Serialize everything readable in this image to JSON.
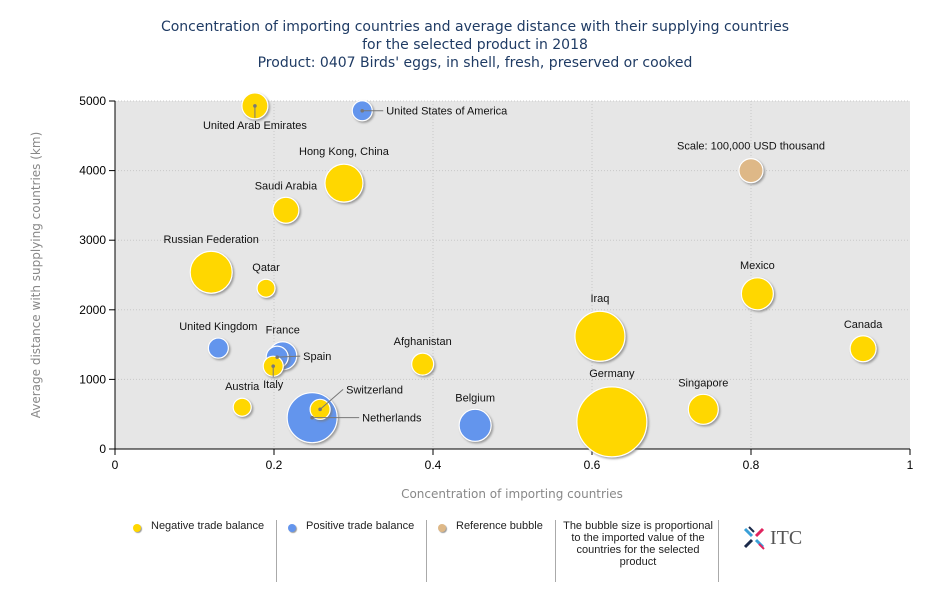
{
  "title": {
    "line1": "Concentration of importing countries and average distance with their supplying countries",
    "line2": "for the selected product in 2018",
    "line3": "Product: 0407 Birds' eggs, in shell, fresh, preserved or cooked"
  },
  "colors": {
    "negative": "#ffd700",
    "positive": "#6495ed",
    "reference": "#deb887",
    "plot_bg": "#e6e6e6"
  },
  "chart_data": {
    "type": "scatter",
    "subtype": "bubble",
    "xlabel": "Concentration of importing countries",
    "ylabel": "Average distance with supplying countries (km)",
    "xlim": [
      0,
      1
    ],
    "ylim": [
      0,
      5000
    ],
    "xticks": [
      "0",
      "0.2",
      "0.4",
      "0.6",
      "0.8",
      "1"
    ],
    "xtick_values": [
      0,
      0.2,
      0.4,
      0.6,
      0.8,
      1
    ],
    "yticks": [
      "0",
      "1000",
      "2000",
      "3000",
      "4000",
      "5000"
    ],
    "ytick_values": [
      0,
      1000,
      2000,
      3000,
      4000,
      5000
    ],
    "grid": true,
    "bubble_size_note": "relative import value (reference bubble = 100,000 USD thousand)",
    "points": [
      {
        "name": "United Arab Emirates",
        "x": 0.176,
        "y": 4930,
        "size": 117000,
        "balance": "negative"
      },
      {
        "name": "United States of America",
        "x": 0.311,
        "y": 4860,
        "size": 69000,
        "balance": "positive"
      },
      {
        "name": "Hong Kong, China",
        "x": 0.288,
        "y": 3820,
        "size": 250000,
        "balance": "negative"
      },
      {
        "name": "Saudi Arabia",
        "x": 0.215,
        "y": 3430,
        "size": 117000,
        "balance": "negative"
      },
      {
        "name": "Russian Federation",
        "x": 0.121,
        "y": 2540,
        "size": 306000,
        "balance": "negative"
      },
      {
        "name": "Qatar",
        "x": 0.19,
        "y": 2310,
        "size": 56000,
        "balance": "negative"
      },
      {
        "name": "Mexico",
        "x": 0.808,
        "y": 2230,
        "size": 178000,
        "balance": "negative"
      },
      {
        "name": "Iraq",
        "x": 0.61,
        "y": 1620,
        "size": 434000,
        "balance": "negative"
      },
      {
        "name": "Canada",
        "x": 0.941,
        "y": 1440,
        "size": 117000,
        "balance": "negative"
      },
      {
        "name": "United Kingdom",
        "x": 0.13,
        "y": 1450,
        "size": 69000,
        "balance": "positive"
      },
      {
        "name": "France",
        "x": 0.211,
        "y": 1340,
        "size": 136000,
        "balance": "positive"
      },
      {
        "name": "Spain",
        "x": 0.204,
        "y": 1320,
        "size": 84000,
        "balance": "positive"
      },
      {
        "name": "Italy",
        "x": 0.199,
        "y": 1190,
        "size": 69000,
        "balance": "negative"
      },
      {
        "name": "Afghanistan",
        "x": 0.387,
        "y": 1220,
        "size": 84000,
        "balance": "negative"
      },
      {
        "name": "Austria",
        "x": 0.16,
        "y": 600,
        "size": 56000,
        "balance": "negative"
      },
      {
        "name": "Switzerland",
        "x": 0.258,
        "y": 570,
        "size": 69000,
        "balance": "negative"
      },
      {
        "name": "Netherlands",
        "x": 0.248,
        "y": 450,
        "size": 434000,
        "balance": "positive"
      },
      {
        "name": "Belgium",
        "x": 0.453,
        "y": 340,
        "size": 178000,
        "balance": "positive"
      },
      {
        "name": "Germany",
        "x": 0.625,
        "y": 390,
        "size": 850000,
        "balance": "negative"
      },
      {
        "name": "Singapore",
        "x": 0.74,
        "y": 570,
        "size": 156000,
        "balance": "negative"
      }
    ],
    "reference": {
      "label": "Scale: 100,000 USD thousand",
      "x": 0.8,
      "y": 4000,
      "size": 100000
    },
    "legend": [
      {
        "label": "Negative trade balance",
        "balance": "negative"
      },
      {
        "label": "Positive trade balance",
        "balance": "positive"
      },
      {
        "label": "Reference bubble",
        "balance": "reference"
      }
    ],
    "legend_position": "bottom"
  },
  "note": "The bubble size is proportional to the imported value of the countries for the selected product",
  "logo": {
    "text": "ITC"
  }
}
